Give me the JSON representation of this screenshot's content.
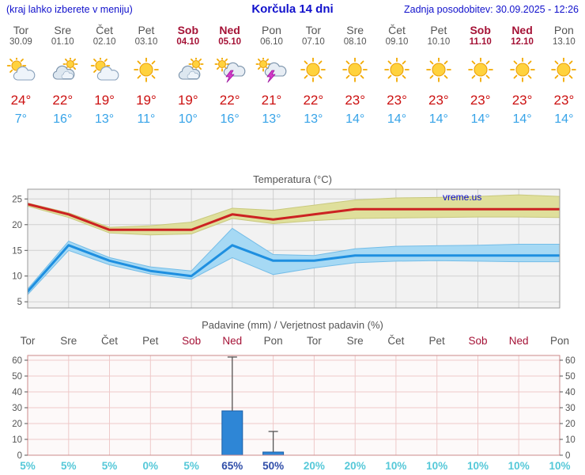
{
  "header": {
    "menu_note": "(kraj lahko izberete v meniju)",
    "title": "Korčula 14 dni",
    "last_update": "Zadnja posodobitev: 30.09.2025 - 12:26"
  },
  "colors": {
    "header_blue": "#1111cc",
    "weekday_gray": "#555555",
    "weekend_red": "#a51236",
    "tmax_red": "#cc1111",
    "tmin_blue": "#36a3e8",
    "prob_light": "#55c8d8",
    "prob_strong": "#2f4da8"
  },
  "days": [
    {
      "name": "Tor",
      "date": "30.09",
      "weekend": false,
      "icon": "partly-cloudy",
      "tmax": "24°",
      "tmin": "7°"
    },
    {
      "name": "Sre",
      "date": "01.10",
      "weekend": false,
      "icon": "cloudy",
      "tmax": "22°",
      "tmin": "16°"
    },
    {
      "name": "Čet",
      "date": "02.10",
      "weekend": false,
      "icon": "partly-cloudy",
      "tmax": "19°",
      "tmin": "13°"
    },
    {
      "name": "Pet",
      "date": "03.10",
      "weekend": false,
      "icon": "sunny",
      "tmax": "19°",
      "tmin": "11°"
    },
    {
      "name": "Sob",
      "date": "04.10",
      "weekend": true,
      "icon": "cloudy",
      "tmax": "19°",
      "tmin": "10°"
    },
    {
      "name": "Ned",
      "date": "05.10",
      "weekend": true,
      "icon": "thunderstorm",
      "tmax": "22°",
      "tmin": "16°"
    },
    {
      "name": "Pon",
      "date": "06.10",
      "weekend": false,
      "icon": "thunderstorm",
      "tmax": "21°",
      "tmin": "13°"
    },
    {
      "name": "Tor",
      "date": "07.10",
      "weekend": false,
      "icon": "sunny",
      "tmax": "22°",
      "tmin": "13°"
    },
    {
      "name": "Sre",
      "date": "08.10",
      "weekend": false,
      "icon": "sunny",
      "tmax": "23°",
      "tmin": "14°"
    },
    {
      "name": "Čet",
      "date": "09.10",
      "weekend": false,
      "icon": "sunny",
      "tmax": "23°",
      "tmin": "14°"
    },
    {
      "name": "Pet",
      "date": "10.10",
      "weekend": false,
      "icon": "sunny",
      "tmax": "23°",
      "tmin": "14°"
    },
    {
      "name": "Sob",
      "date": "11.10",
      "weekend": true,
      "icon": "sunny",
      "tmax": "23°",
      "tmin": "14°"
    },
    {
      "name": "Ned",
      "date": "12.10",
      "weekend": true,
      "icon": "sunny",
      "tmax": "23°",
      "tmin": "14°"
    },
    {
      "name": "Pon",
      "date": "13.10",
      "weekend": false,
      "icon": "sunny",
      "tmax": "23°",
      "tmin": "14°"
    }
  ],
  "chart_data": [
    {
      "type": "line",
      "title": "Temperatura (°C)",
      "watermark": "vreme.us",
      "categories": [
        "Tor",
        "Sre",
        "Čet",
        "Pet",
        "Sob",
        "Ned",
        "Pon",
        "Tor",
        "Sre",
        "Čet",
        "Pet",
        "Sob",
        "Ned",
        "Pon"
      ],
      "y_ticks": [
        5,
        10,
        15,
        20,
        25
      ],
      "ylim": [
        3.8,
        26.9
      ],
      "grid_color": "#cfcfcf",
      "frame_color": "#999999",
      "bg_color": "#f2f2f2",
      "series": [
        {
          "name": "tmax",
          "color": "#cc2222",
          "band_color": "#dfdf9b",
          "band_edge": "#c9c97e",
          "values": [
            24,
            22,
            19,
            19,
            19,
            22,
            21,
            22,
            23,
            23,
            23,
            23,
            23,
            23
          ],
          "band_upper": [
            24.2,
            22.3,
            19.5,
            19.8,
            20.5,
            23.2,
            22.8,
            23.8,
            24.8,
            25.2,
            25.3,
            25.5,
            25.8,
            25.5
          ],
          "band_lower": [
            23.6,
            21.4,
            18.4,
            18.0,
            18.2,
            21.2,
            20.2,
            20.8,
            21.2,
            21.3,
            21.4,
            21.5,
            21.5,
            21.4
          ]
        },
        {
          "name": "tmin",
          "color": "#1e8fe0",
          "band_color": "#a6d9f4",
          "band_edge": "#74bde8",
          "values": [
            7,
            16,
            13,
            11,
            10,
            16,
            13,
            13,
            14,
            14,
            14,
            14,
            14,
            14
          ],
          "band_upper": [
            7.5,
            16.8,
            13.6,
            11.8,
            11.0,
            19.3,
            14.2,
            14.0,
            15.3,
            15.8,
            15.9,
            16.0,
            16.2,
            16.2
          ],
          "band_lower": [
            6.4,
            15.0,
            12.2,
            10.4,
            9.4,
            13.6,
            10.3,
            11.6,
            12.6,
            12.9,
            13.0,
            12.9,
            12.8,
            12.8
          ]
        }
      ]
    },
    {
      "type": "bar",
      "title": "Padavine (mm) / Verjetnost padavin (%)",
      "categories": [
        "Tor",
        "Sre",
        "Čet",
        "Pet",
        "Sob",
        "Ned",
        "Pon",
        "Tor",
        "Sre",
        "Čet",
        "Pet",
        "Sob",
        "Ned",
        "Pon"
      ],
      "weekend_mask": [
        false,
        false,
        false,
        false,
        true,
        true,
        false,
        false,
        false,
        false,
        false,
        true,
        true,
        false
      ],
      "values": [
        0,
        0,
        0,
        0,
        0,
        28,
        2,
        0,
        0,
        0,
        0,
        0,
        0,
        0
      ],
      "whisker_max": [
        0,
        0,
        0,
        0,
        0,
        62,
        15,
        0,
        0,
        0,
        0,
        0,
        0,
        0
      ],
      "probabilities": [
        "5%",
        "5%",
        "5%",
        "0%",
        "5%",
        "65%",
        "50%",
        "20%",
        "20%",
        "10%",
        "10%",
        "10%",
        "10%",
        "10%"
      ],
      "prob_emphasis": [
        false,
        false,
        false,
        false,
        false,
        true,
        true,
        false,
        false,
        false,
        false,
        false,
        false,
        false
      ],
      "y_ticks": [
        0,
        10,
        20,
        30,
        40,
        50,
        60
      ],
      "ylim": [
        0,
        63
      ],
      "bar_color": "#2e86d6",
      "bar_border": "#1a60a8",
      "whisker_color": "#555555",
      "grid_color": "#eec9c9",
      "frame_color": "#cc8a8a",
      "bg_color": "#fdf9f9"
    }
  ]
}
